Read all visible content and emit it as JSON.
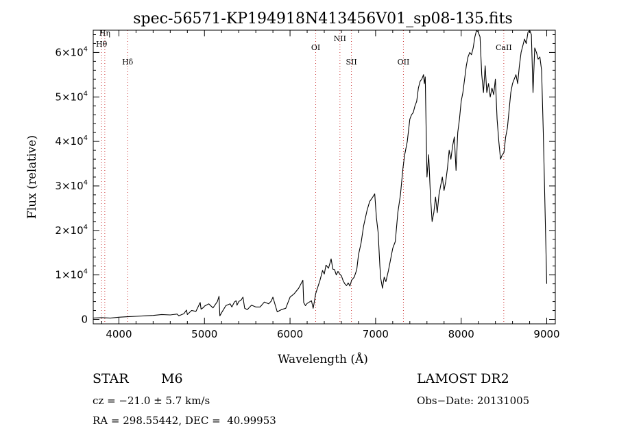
{
  "chart_data": {
    "type": "line",
    "title": "spec-56571-KP194918N413456V01_sp08-135.fits",
    "xlabel": "Wavelength (Å)",
    "ylabel": "Flux (relative)",
    "xlim": [
      3700,
      9100
    ],
    "ylim": [
      -1000,
      65000
    ],
    "x_ticks": [
      4000,
      5000,
      6000,
      7000,
      8000,
      9000
    ],
    "y_ticks": [
      {
        "value": 0,
        "mantissa": "0",
        "exponent": ""
      },
      {
        "value": 10000,
        "mantissa": "1×10",
        "exponent": "4"
      },
      {
        "value": 20000,
        "mantissa": "2×10",
        "exponent": "4"
      },
      {
        "value": 30000,
        "mantissa": "3×10",
        "exponent": "4"
      },
      {
        "value": 40000,
        "mantissa": "4×10",
        "exponent": "4"
      },
      {
        "value": 50000,
        "mantissa": "5×10",
        "exponent": "4"
      },
      {
        "value": 60000,
        "mantissa": "6×10",
        "exponent": "4"
      }
    ],
    "grid": false,
    "line_color": "#000000",
    "marker_color": "#cc3333",
    "lines": [
      {
        "label": "Hη",
        "wavelength": 3835,
        "label_y": 63800
      },
      {
        "label": "Hθ",
        "wavelength": 3797,
        "label_y": 61300
      },
      {
        "label": "Hδ",
        "wavelength": 4102,
        "label_y": 57300
      },
      {
        "label": "OI",
        "wavelength": 6300,
        "label_y": 60500
      },
      {
        "label": "NII",
        "wavelength": 6583,
        "label_y": 62500
      },
      {
        "label": "SII",
        "wavelength": 6717,
        "label_y": 57300
      },
      {
        "label": "OII",
        "wavelength": 7325,
        "label_y": 57300
      },
      {
        "label": "CaII",
        "wavelength": 8498,
        "label_y": 60500
      }
    ],
    "series": [
      {
        "x": [
          3700,
          3800,
          3900,
          4000,
          4100,
          4200,
          4300,
          4400,
          4500,
          4600,
          4680,
          4700,
          4760,
          4790,
          4800,
          4850,
          4900,
          4950,
          4960,
          4990,
          5000,
          5050,
          5100,
          5150,
          5170,
          5180,
          5200,
          5250,
          5300,
          5320,
          5350,
          5370,
          5380,
          5400,
          5430,
          5450,
          5470,
          5500,
          5550,
          5600,
          5650,
          5700,
          5750,
          5780,
          5800,
          5830,
          5850,
          5880,
          5900,
          5950,
          6000,
          6050,
          6100,
          6150,
          6160,
          6180,
          6200,
          6250,
          6270,
          6280,
          6300,
          6320,
          6350,
          6380,
          6400,
          6420,
          6450,
          6480,
          6500,
          6520,
          6540,
          6560,
          6580,
          6600,
          6620,
          6640,
          6660,
          6680,
          6700,
          6720,
          6750,
          6780,
          6800,
          6830,
          6860,
          6900,
          6930,
          6960,
          6990,
          7010,
          7030,
          7050,
          7060,
          7080,
          7100,
          7120,
          7150,
          7180,
          7200,
          7230,
          7260,
          7290,
          7320,
          7340,
          7370,
          7400,
          7420,
          7440,
          7460,
          7480,
          7500,
          7520,
          7540,
          7560,
          7570,
          7580,
          7600,
          7620,
          7640,
          7660,
          7680,
          7700,
          7720,
          7740,
          7760,
          7780,
          7800,
          7820,
          7840,
          7860,
          7880,
          7900,
          7920,
          7940,
          7960,
          7980,
          8000,
          8020,
          8040,
          8060,
          8080,
          8100,
          8120,
          8140,
          8160,
          8180,
          8200,
          8220,
          8240,
          8260,
          8280,
          8300,
          8320,
          8340,
          8360,
          8380,
          8400,
          8420,
          8440,
          8460,
          8480,
          8500,
          8520,
          8540,
          8560,
          8580,
          8600,
          8620,
          8640,
          8660,
          8680,
          8700,
          8720,
          8740,
          8760,
          8780,
          8800,
          8820,
          8840,
          8860,
          8880,
          8900,
          8920,
          8940,
          8960,
          8980,
          9000
        ],
        "y": [
          300,
          400,
          300,
          500,
          600,
          700,
          800,
          900,
          1100,
          1000,
          1200,
          800,
          1300,
          2100,
          1100,
          2000,
          1800,
          3800,
          2300,
          2700,
          3000,
          3500,
          2600,
          4000,
          5200,
          800,
          1500,
          3100,
          3500,
          2800,
          3900,
          4200,
          3200,
          4000,
          4400,
          5000,
          2500,
          2200,
          3200,
          2800,
          2800,
          3900,
          3500,
          4100,
          5000,
          3000,
          1700,
          2000,
          2200,
          2500,
          5000,
          5800,
          7000,
          8800,
          3800,
          3100,
          3600,
          4200,
          2500,
          3500,
          5800,
          7000,
          8800,
          11000,
          10200,
          12200,
          11500,
          13600,
          11300,
          11200,
          10000,
          10800,
          10200,
          9800,
          8700,
          8000,
          7600,
          8200,
          7500,
          8800,
          9500,
          11200,
          14500,
          17200,
          21000,
          24500,
          26500,
          27300,
          28200,
          22800,
          19500,
          12000,
          9200,
          7000,
          9500,
          8500,
          11000,
          14000,
          16000,
          17500,
          24000,
          28000,
          34000,
          37000,
          40000,
          45000,
          46000,
          46500,
          48000,
          49000,
          52000,
          53500,
          54000,
          55000,
          53000,
          54500,
          32000,
          37000,
          28000,
          22000,
          24000,
          27500,
          24000,
          28000,
          30000,
          32000,
          29000,
          31000,
          34000,
          38000,
          36000,
          39000,
          41000,
          33500,
          42000,
          45000,
          49000,
          51000,
          54000,
          57000,
          59000,
          60000,
          59500,
          61000,
          63500,
          65000,
          64500,
          63500,
          55000,
          51000,
          57000,
          51000,
          53000,
          50000,
          52000,
          50500,
          54000,
          45000,
          40000,
          36000,
          37000,
          37500,
          41000,
          43000,
          47000,
          51000,
          53000,
          54000,
          55000,
          53000,
          57000,
          60000,
          61500,
          63000,
          62000,
          64500,
          65000,
          64000,
          51000,
          61000,
          60000,
          58500,
          59000,
          56000,
          42000,
          25000,
          8000
        ]
      }
    ]
  },
  "info": {
    "object_class": "STAR",
    "subclass": "M6",
    "survey": "LAMOST DR2",
    "cz": "cz = −21.0 ± 5.7 km/s",
    "obs_date": "Obs−Date: 20131005",
    "coords": "RA = 298.55442, DEC =  40.99953"
  }
}
